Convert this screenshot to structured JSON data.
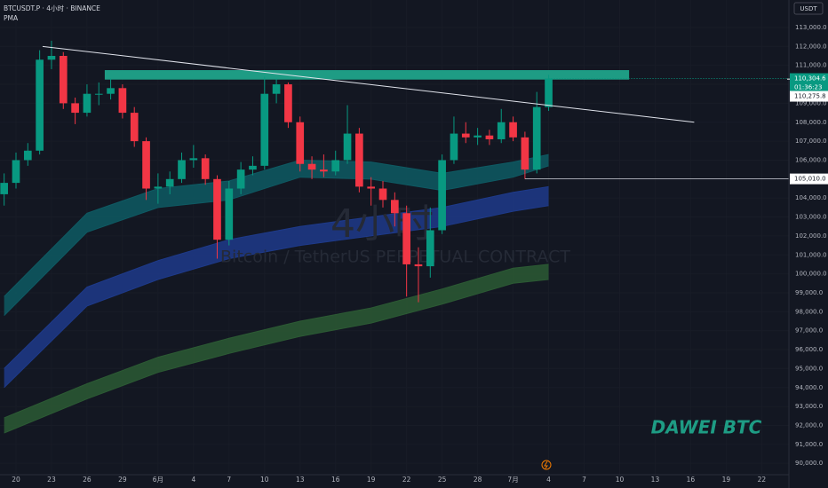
{
  "chart_data": {
    "type": "candlestick",
    "title": "BTCUSDT.P · 4小时 · BINANCE",
    "subtitle": "PMA",
    "watermark": "4小时",
    "watermark_subtitle": "Bitcoin / TetherUS PERPETUAL CONTRACT",
    "annotation": "DAWEI BTC",
    "y_unit": "USDT",
    "up_color": "#089981",
    "down_color": "#f23645",
    "x": [
      -1,
      0,
      1,
      2,
      3,
      4,
      5,
      6,
      7,
      8,
      9,
      10,
      11,
      12,
      13,
      14,
      15,
      16,
      17,
      18,
      19,
      20,
      21,
      22,
      23,
      24,
      25,
      26,
      27,
      28,
      29,
      30,
      31,
      32,
      33,
      34,
      35,
      36,
      37,
      38,
      39,
      40,
      41,
      42,
      43,
      44,
      45
    ],
    "open": [
      104200,
      104800,
      106000,
      106500,
      111300,
      111500,
      109000,
      108500,
      109500,
      109500,
      109800,
      108500,
      107000,
      104500,
      104600,
      105000,
      106000,
      106100,
      105000,
      101800,
      104500,
      105500,
      105700,
      109500,
      110000,
      108000,
      105800,
      105500,
      105400,
      106000,
      107400,
      104600,
      104500,
      103900,
      103200,
      100500,
      100400,
      102300,
      106000,
      107400,
      107200,
      107300,
      107100,
      108000,
      107200,
      105500,
      108800
    ],
    "high": [
      105300,
      106400,
      106900,
      111800,
      112300,
      111700,
      109300,
      110000,
      110100,
      110300,
      110000,
      108800,
      107200,
      105300,
      105400,
      106400,
      106800,
      106300,
      105200,
      104900,
      105900,
      106200,
      110400,
      110300,
      110100,
      108300,
      106200,
      106300,
      106500,
      108900,
      107700,
      105100,
      104900,
      104300,
      103600,
      101400,
      103500,
      106300,
      108300,
      108000,
      107700,
      107600,
      108700,
      108300,
      107500,
      109600,
      110500
    ],
    "low": [
      103600,
      104500,
      105700,
      106300,
      110800,
      108700,
      107900,
      108300,
      108900,
      109200,
      108200,
      106700,
      103900,
      103700,
      104200,
      104800,
      105600,
      104700,
      100800,
      101500,
      104200,
      105200,
      105500,
      109000,
      107700,
      105400,
      105000,
      105100,
      105200,
      105800,
      104300,
      103600,
      103500,
      102500,
      98800,
      98500,
      99800,
      102100,
      105800,
      106900,
      106800,
      106800,
      106900,
      107000,
      105010,
      105300,
      108600
    ],
    "close": [
      104800,
      106000,
      106500,
      111300,
      111500,
      109000,
      108500,
      109500,
      109500,
      109800,
      108500,
      107000,
      104500,
      104600,
      105000,
      106000,
      106100,
      105000,
      101800,
      104500,
      105500,
      105700,
      109500,
      110000,
      108000,
      105800,
      105500,
      105400,
      106000,
      107400,
      104600,
      104500,
      103900,
      103200,
      100500,
      100400,
      102300,
      106000,
      107400,
      107200,
      107300,
      107100,
      108000,
      107200,
      105500,
      108800,
      110304.6
    ],
    "bands": [
      {
        "color": "#0e5a63",
        "x": [
          -1,
          6,
          12,
          18,
          24,
          30,
          36,
          42,
          45
        ],
        "upper": [
          98800,
          103200,
          104500,
          104900,
          106000,
          105900,
          105300,
          105900,
          106300
        ],
        "lower": [
          97800,
          102200,
          103500,
          103900,
          105100,
          105000,
          104400,
          105100,
          105700
        ]
      },
      {
        "color": "#1e3a8a",
        "x": [
          -1,
          6,
          12,
          18,
          24,
          30,
          36,
          42,
          45
        ],
        "upper": [
          95000,
          99300,
          100700,
          101800,
          102500,
          103000,
          103500,
          104300,
          104600
        ],
        "lower": [
          94000,
          98300,
          99700,
          100800,
          101500,
          102000,
          102500,
          103300,
          103600
        ]
      },
      {
        "color": "#2c5a34",
        "x": [
          -1,
          6,
          12,
          18,
          24,
          30,
          36,
          42,
          45
        ],
        "upper": [
          92400,
          94200,
          95600,
          96600,
          97500,
          98200,
          99200,
          100300,
          100500
        ],
        "lower": [
          91600,
          93400,
          94800,
          95800,
          96700,
          97400,
          98400,
          99500,
          99700
        ]
      }
    ],
    "zone": {
      "color": "#1e9c84",
      "x": [
        7.5,
        51.8
      ],
      "y": [
        110250,
        110750
      ]
    },
    "trendline": {
      "x": [
        2.25,
        57.3
      ],
      "y": [
        112000,
        108000
      ]
    },
    "last_price": {
      "value": 110304.6,
      "label": "110,304.6"
    },
    "countdown": "01:36:23",
    "prev_price": {
      "value": 110275.8,
      "label": "110,275.8"
    },
    "support": {
      "x": 43,
      "value": 105010,
      "label": "105,010.0"
    },
    "xlim": [
      -1.35,
      65.3
    ],
    "ylim": [
      89400,
      114450
    ],
    "xticks": [
      {
        "value": 0,
        "label": "20"
      },
      {
        "value": 3,
        "label": "23"
      },
      {
        "value": 6,
        "label": "26"
      },
      {
        "value": 9,
        "label": "29"
      },
      {
        "value": 12,
        "label": "6月"
      },
      {
        "value": 15,
        "label": "4"
      },
      {
        "value": 18,
        "label": "7"
      },
      {
        "value": 21,
        "label": "10"
      },
      {
        "value": 24,
        "label": "13"
      },
      {
        "value": 27,
        "label": "16"
      },
      {
        "value": 30,
        "label": "19"
      },
      {
        "value": 33,
        "label": "22"
      },
      {
        "value": 36,
        "label": "25"
      },
      {
        "value": 39,
        "label": "28"
      },
      {
        "value": 42,
        "label": "7月"
      },
      {
        "value": 45,
        "label": "4"
      },
      {
        "value": 48,
        "label": "7"
      },
      {
        "value": 51,
        "label": "10"
      },
      {
        "value": 54,
        "label": "13"
      },
      {
        "value": 57,
        "label": "16"
      },
      {
        "value": 60,
        "label": "19"
      },
      {
        "value": 63,
        "label": "22"
      }
    ],
    "yticks": [
      {
        "value": 90000,
        "label": "90,000.0"
      },
      {
        "value": 91000,
        "label": "91,000.0"
      },
      {
        "value": 92000,
        "label": "92,000.0"
      },
      {
        "value": 93000,
        "label": "93,000.0"
      },
      {
        "value": 94000,
        "label": "94,000.0"
      },
      {
        "value": 95000,
        "label": "95,000.0"
      },
      {
        "value": 96000,
        "label": "96,000.0"
      },
      {
        "value": 97000,
        "label": "97,000.0"
      },
      {
        "value": 98000,
        "label": "98,000.0"
      },
      {
        "value": 99000,
        "label": "99,000.0"
      },
      {
        "value": 100000,
        "label": "100,000.0"
      },
      {
        "value": 101000,
        "label": "101,000.0"
      },
      {
        "value": 102000,
        "label": "102,000.0"
      },
      {
        "value": 103000,
        "label": "103,000.0"
      },
      {
        "value": 104000,
        "label": "104,000.0"
      },
      {
        "value": 105000,
        "label": "105,000.0"
      },
      {
        "value": 106000,
        "label": "106,000.0"
      },
      {
        "value": 107000,
        "label": "107,000.0"
      },
      {
        "value": 108000,
        "label": "108,000.0"
      },
      {
        "value": 109000,
        "label": "109,000.0"
      },
      {
        "value": 110000,
        "label": "110,000.0"
      },
      {
        "value": 111000,
        "label": "111,000.0"
      },
      {
        "value": 112000,
        "label": "112,000.0"
      },
      {
        "value": 113000,
        "label": "113,000.0"
      }
    ]
  }
}
